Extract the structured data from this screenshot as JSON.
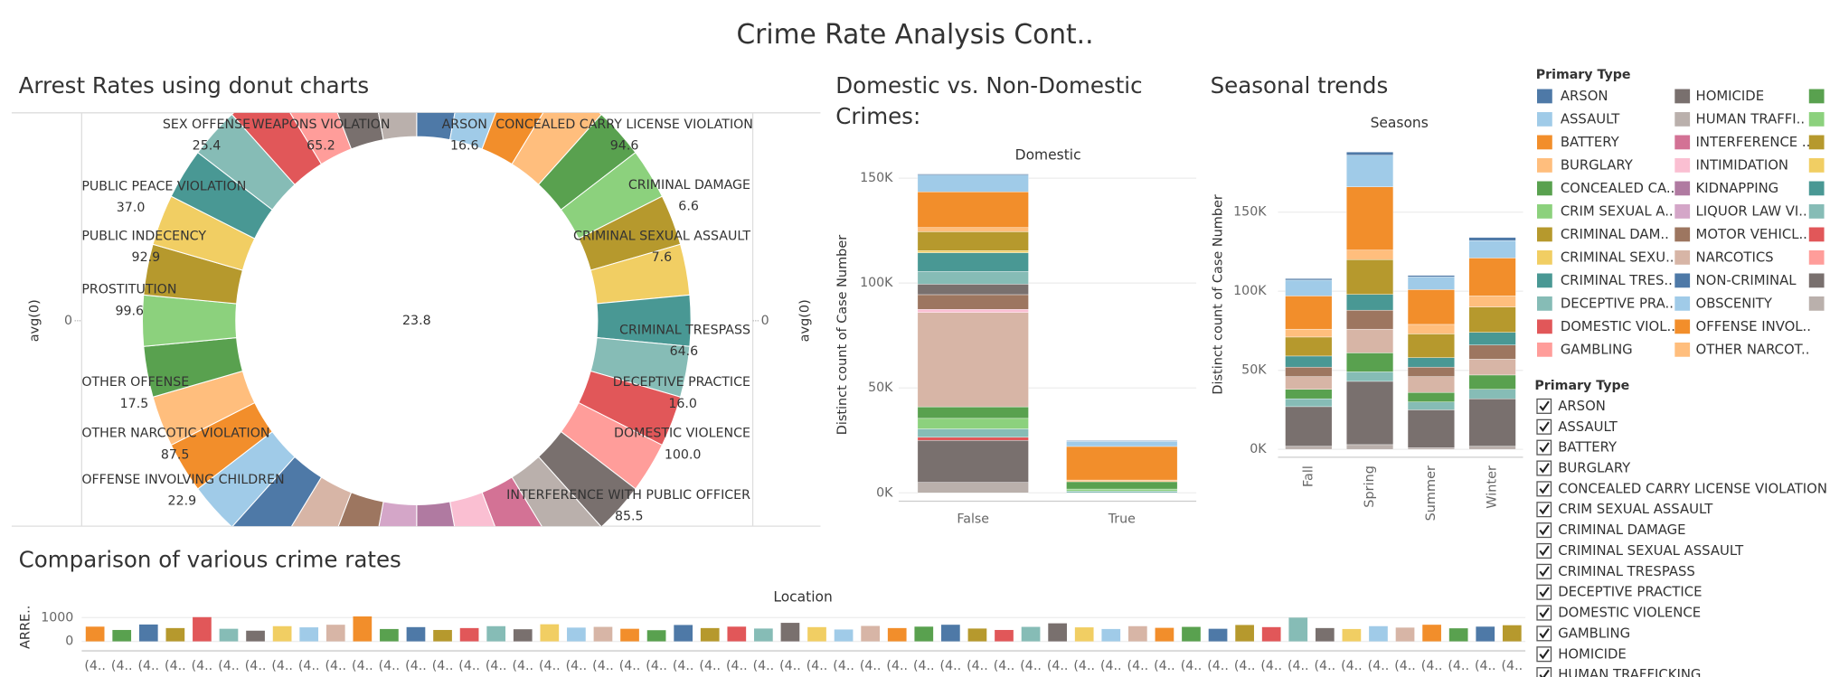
{
  "title": "Crime Rate Analysis Cont..",
  "chart_data": [
    {
      "type": "pie",
      "title": "Arrest Rates using donut charts",
      "center_value": 23.8,
      "y_label": "avg(0)",
      "y2_label": "avg(0)",
      "yticks": [
        0
      ],
      "y2ticks": [
        0
      ],
      "categories": [
        "ARSON",
        null,
        null,
        null,
        "CONCEALED CARRY LICENSE VIOLATION",
        null,
        "CRIMINAL DAMAGE",
        "CRIMINAL SEXUAL ASSAULT",
        "CRIMINAL TRESPASS",
        "DECEPTIVE PRACTICE",
        "DOMESTIC VIOLENCE",
        null,
        null,
        "INTERFERENCE WITH PUBLIC OFFICER",
        null,
        null,
        null,
        null,
        null,
        null,
        null,
        null,
        "OFFENSE INVOLVING CHILDREN",
        "OTHER NARCOTIC VIOLATION",
        "OTHER OFFENSE",
        "PROSTITUTION",
        "PUBLIC INDECENCY",
        "PUBLIC PEACE VIOLATION",
        null,
        "SEX OFFENSE",
        null,
        "WEAPONS VIOLATION",
        null,
        null
      ],
      "values": [
        16.6,
        null,
        null,
        null,
        94.6,
        null,
        6.6,
        7.6,
        64.6,
        16.0,
        100.0,
        null,
        null,
        85.5,
        null,
        null,
        null,
        null,
        null,
        null,
        null,
        null,
        22.9,
        87.5,
        17.5,
        99.6,
        92.9,
        37.0,
        null,
        25.4,
        null,
        65.2,
        null,
        null
      ],
      "value_labels": [
        "16.6",
        null,
        null,
        null,
        "94.6",
        null,
        "6.6",
        "7.6",
        "64.6",
        "16.0",
        "100.0",
        null,
        null,
        "85.5",
        null,
        null,
        null,
        null,
        null,
        null,
        null,
        null,
        "22.9",
        "87.5",
        "17.5",
        "99.6",
        "92.9",
        "37.0",
        null,
        "25.4",
        null,
        "65.2",
        null,
        null
      ],
      "colors": [
        "#4e79a7",
        "#a0cbe8",
        "#f28e2b",
        "#ffbe7d",
        "#59a14f",
        "#8cd17d",
        "#b6992d",
        "#f1ce63",
        "#499894",
        "#86bcb6",
        "#e15759",
        "#ff9d9a",
        "#79706e",
        "#bab0ac",
        "#d37295",
        "#fabfd2",
        "#b07aa1",
        "#d4a6c8",
        "#9d7660",
        "#d7b5a6",
        "#4e79a7",
        "#a0cbe8",
        "#f28e2b",
        "#ffbe7d",
        "#59a14f",
        "#8cd17d",
        "#b6992d",
        "#f1ce63",
        "#499894",
        "#86bcb6",
        "#e15759",
        "#ff9d9a",
        "#79706e",
        "#bab0ac"
      ]
    },
    {
      "type": "bar",
      "title": "Domestic vs. Non-Domestic Crimes:",
      "x_header": "Domestic",
      "y_label": "Distinct count of Case Number",
      "categories": [
        "False",
        "True"
      ],
      "ylim": [
        -4000,
        154000
      ],
      "yticks": [
        {
          "value": 0,
          "label": "0K"
        },
        {
          "value": 50000,
          "label": "50K"
        },
        {
          "value": 100000,
          "label": "100K"
        },
        {
          "value": 150000,
          "label": "150K"
        }
      ],
      "grid": true,
      "series": [
        {
          "color": "#bab0ac",
          "values": [
            5000,
            0
          ]
        },
        {
          "color": "#79706e",
          "values": [
            20000,
            0
          ]
        },
        {
          "color": "#e15759",
          "values": [
            1500,
            0
          ]
        },
        {
          "color": "#86bcb6",
          "values": [
            4000,
            800
          ]
        },
        {
          "color": "#8cd17d",
          "values": [
            5000,
            1000
          ]
        },
        {
          "color": "#59a14f",
          "values": [
            5500,
            3500
          ]
        },
        {
          "color": "#d7b5a6",
          "values": [
            45000,
            0
          ]
        },
        {
          "color": "#fabfd2",
          "values": [
            1500,
            0
          ]
        },
        {
          "color": "#9d7660",
          "values": [
            7000,
            0
          ]
        },
        {
          "color": "#79706e",
          "values": [
            5000,
            0
          ]
        },
        {
          "color": "#86bcb6",
          "values": [
            6000,
            0
          ]
        },
        {
          "color": "#499894",
          "values": [
            9000,
            0
          ]
        },
        {
          "color": "#f1ce63",
          "values": [
            1000,
            0
          ]
        },
        {
          "color": "#b6992d",
          "values": [
            9000,
            0
          ]
        },
        {
          "color": "#ffbe7d",
          "values": [
            2000,
            800
          ]
        },
        {
          "color": "#f28e2b",
          "values": [
            17000,
            16000
          ]
        },
        {
          "color": "#a0cbe8",
          "values": [
            8000,
            2500
          ]
        },
        {
          "color": "#4e79a7",
          "values": [
            500,
            300
          ]
        }
      ]
    },
    {
      "type": "bar",
      "title": "Seasonal trends",
      "x_header": "Seasons",
      "y_label": "Distinct count of Case Number",
      "categories": [
        "Fall",
        "Spring",
        "Summer",
        "Winter"
      ],
      "ylim": [
        -5000,
        200000
      ],
      "yticks": [
        {
          "value": 0,
          "label": "0K"
        },
        {
          "value": 50000,
          "label": "50K"
        },
        {
          "value": 100000,
          "label": "100K"
        },
        {
          "value": 150000,
          "label": "150K"
        }
      ],
      "grid": true,
      "series": [
        {
          "color": "#bab0ac",
          "values": [
            2000,
            3000,
            1000,
            2000
          ]
        },
        {
          "color": "#79706e",
          "values": [
            25000,
            40000,
            24000,
            30000
          ]
        },
        {
          "color": "#86bcb6",
          "values": [
            5000,
            6000,
            5000,
            6000
          ]
        },
        {
          "color": "#59a14f",
          "values": [
            6000,
            12000,
            6000,
            9000
          ]
        },
        {
          "color": "#d7b5a6",
          "values": [
            8000,
            15000,
            10000,
            10000
          ]
        },
        {
          "color": "#9d7660",
          "values": [
            6000,
            12000,
            6000,
            9000
          ]
        },
        {
          "color": "#499894",
          "values": [
            7000,
            10000,
            6000,
            8000
          ]
        },
        {
          "color": "#b6992d",
          "values": [
            12000,
            22000,
            15000,
            16000
          ]
        },
        {
          "color": "#ffbe7d",
          "values": [
            5000,
            6000,
            6000,
            7000
          ]
        },
        {
          "color": "#f28e2b",
          "values": [
            21000,
            40000,
            22000,
            24000
          ]
        },
        {
          "color": "#a0cbe8",
          "values": [
            10000,
            20000,
            8000,
            11000
          ]
        },
        {
          "color": "#4e79a7",
          "values": [
            1000,
            2000,
            1000,
            2000
          ]
        }
      ]
    },
    {
      "type": "bar",
      "title": "Comparison of various crime rates",
      "x_header": "Location",
      "y_label": "ARRE..",
      "categories": [
        "(4..",
        "(4..",
        "(4..",
        "(4..",
        "(4..",
        "(4..",
        "(4..",
        "(4..",
        "(4..",
        "(4..",
        "(4..",
        "(4..",
        "(4..",
        "(4..",
        "(4..",
        "(4..",
        "(4..",
        "(4..",
        "(4..",
        "(4..",
        "(4..",
        "(4..",
        "(4..",
        "(4..",
        "(4..",
        "(4..",
        "(4..",
        "(4..",
        "(4..",
        "(4..",
        "(4..",
        "(4..",
        "(4..",
        "(4..",
        "(4..",
        "(4..",
        "(4..",
        "(4..",
        "(4..",
        "(4..",
        "(4..",
        "(4..",
        "(4..",
        "(4..",
        "(4..",
        "(4..",
        "(4..",
        "(4..",
        "(4..",
        "(4..",
        "(4..",
        "(4..",
        "(4..",
        "(4.."
      ],
      "values": [
        620,
        480,
        710,
        560,
        1020,
        530,
        450,
        640,
        590,
        700,
        1050,
        520,
        600,
        480,
        560,
        640,
        510,
        720,
        580,
        610,
        530,
        470,
        690,
        560,
        620,
        540,
        780,
        600,
        500,
        650,
        560,
        620,
        700,
        540,
        480,
        610,
        760,
        590,
        520,
        640,
        570,
        610,
        530,
        690,
        600,
        1000,
        560,
        520,
        640,
        580,
        700,
        550,
        620,
        680
      ],
      "colors": [
        "#f28e2b",
        "#59a14f",
        "#4e79a7",
        "#b6992d",
        "#e15759",
        "#86bcb6",
        "#79706e",
        "#f1ce63",
        "#a0cbe8",
        "#d7b5a6"
      ],
      "ylim": [
        -400,
        1400
      ],
      "yticks": [
        0,
        1000
      ],
      "grid": true
    }
  ],
  "legend": {
    "title": "Primary Type",
    "items": [
      {
        "name": "ARSON",
        "color": "#4e79a7"
      },
      {
        "name": "ASSAULT",
        "color": "#a0cbe8"
      },
      {
        "name": "BATTERY",
        "color": "#f28e2b"
      },
      {
        "name": "BURGLARY",
        "color": "#ffbe7d"
      },
      {
        "name": "CONCEALED CA..",
        "color": "#59a14f"
      },
      {
        "name": "CRIM SEXUAL A..",
        "color": "#8cd17d"
      },
      {
        "name": "CRIMINAL DAM..",
        "color": "#b6992d"
      },
      {
        "name": "CRIMINAL SEXU..",
        "color": "#f1ce63"
      },
      {
        "name": "CRIMINAL TRES..",
        "color": "#499894"
      },
      {
        "name": "DECEPTIVE PRA..",
        "color": "#86bcb6"
      },
      {
        "name": "DOMESTIC VIOL..",
        "color": "#e15759"
      },
      {
        "name": "GAMBLING",
        "color": "#ff9d9a"
      },
      {
        "name": "HOMICIDE",
        "color": "#79706e"
      },
      {
        "name": "HUMAN TRAFFI..",
        "color": "#bab0ac"
      },
      {
        "name": "INTERFERENCE ..",
        "color": "#d37295"
      },
      {
        "name": "INTIMIDATION",
        "color": "#fabfd2"
      },
      {
        "name": "KIDNAPPING",
        "color": "#b07aa1"
      },
      {
        "name": "LIQUOR LAW VI..",
        "color": "#d4a6c8"
      },
      {
        "name": "MOTOR VEHICL..",
        "color": "#9d7660"
      },
      {
        "name": "NARCOTICS",
        "color": "#d7b5a6"
      },
      {
        "name": "NON-CRIMINAL",
        "color": "#4e79a7"
      },
      {
        "name": "OBSCENITY",
        "color": "#a0cbe8"
      },
      {
        "name": "OFFENSE INVOL..",
        "color": "#f28e2b"
      },
      {
        "name": "OTHER NARCOT..",
        "color": "#ffbe7d"
      },
      {
        "name": null,
        "color": "#59a14f"
      },
      {
        "name": null,
        "color": "#8cd17d"
      },
      {
        "name": null,
        "color": "#b6992d"
      },
      {
        "name": null,
        "color": "#f1ce63"
      },
      {
        "name": null,
        "color": "#499894"
      },
      {
        "name": null,
        "color": "#86bcb6"
      },
      {
        "name": null,
        "color": "#e15759"
      },
      {
        "name": null,
        "color": "#ff9d9a"
      },
      {
        "name": null,
        "color": "#79706e"
      },
      {
        "name": null,
        "color": "#bab0ac"
      }
    ]
  },
  "filter": {
    "title": "Primary Type",
    "items": [
      "ARSON",
      "ASSAULT",
      "BATTERY",
      "BURGLARY",
      "CONCEALED CARRY LICENSE VIOLATION",
      "CRIM SEXUAL ASSAULT",
      "CRIMINAL DAMAGE",
      "CRIMINAL SEXUAL ASSAULT",
      "CRIMINAL TRESPASS",
      "DECEPTIVE PRACTICE",
      "DOMESTIC VIOLENCE",
      "GAMBLING",
      "HOMICIDE",
      "HUMAN TRAFFICKING"
    ]
  }
}
